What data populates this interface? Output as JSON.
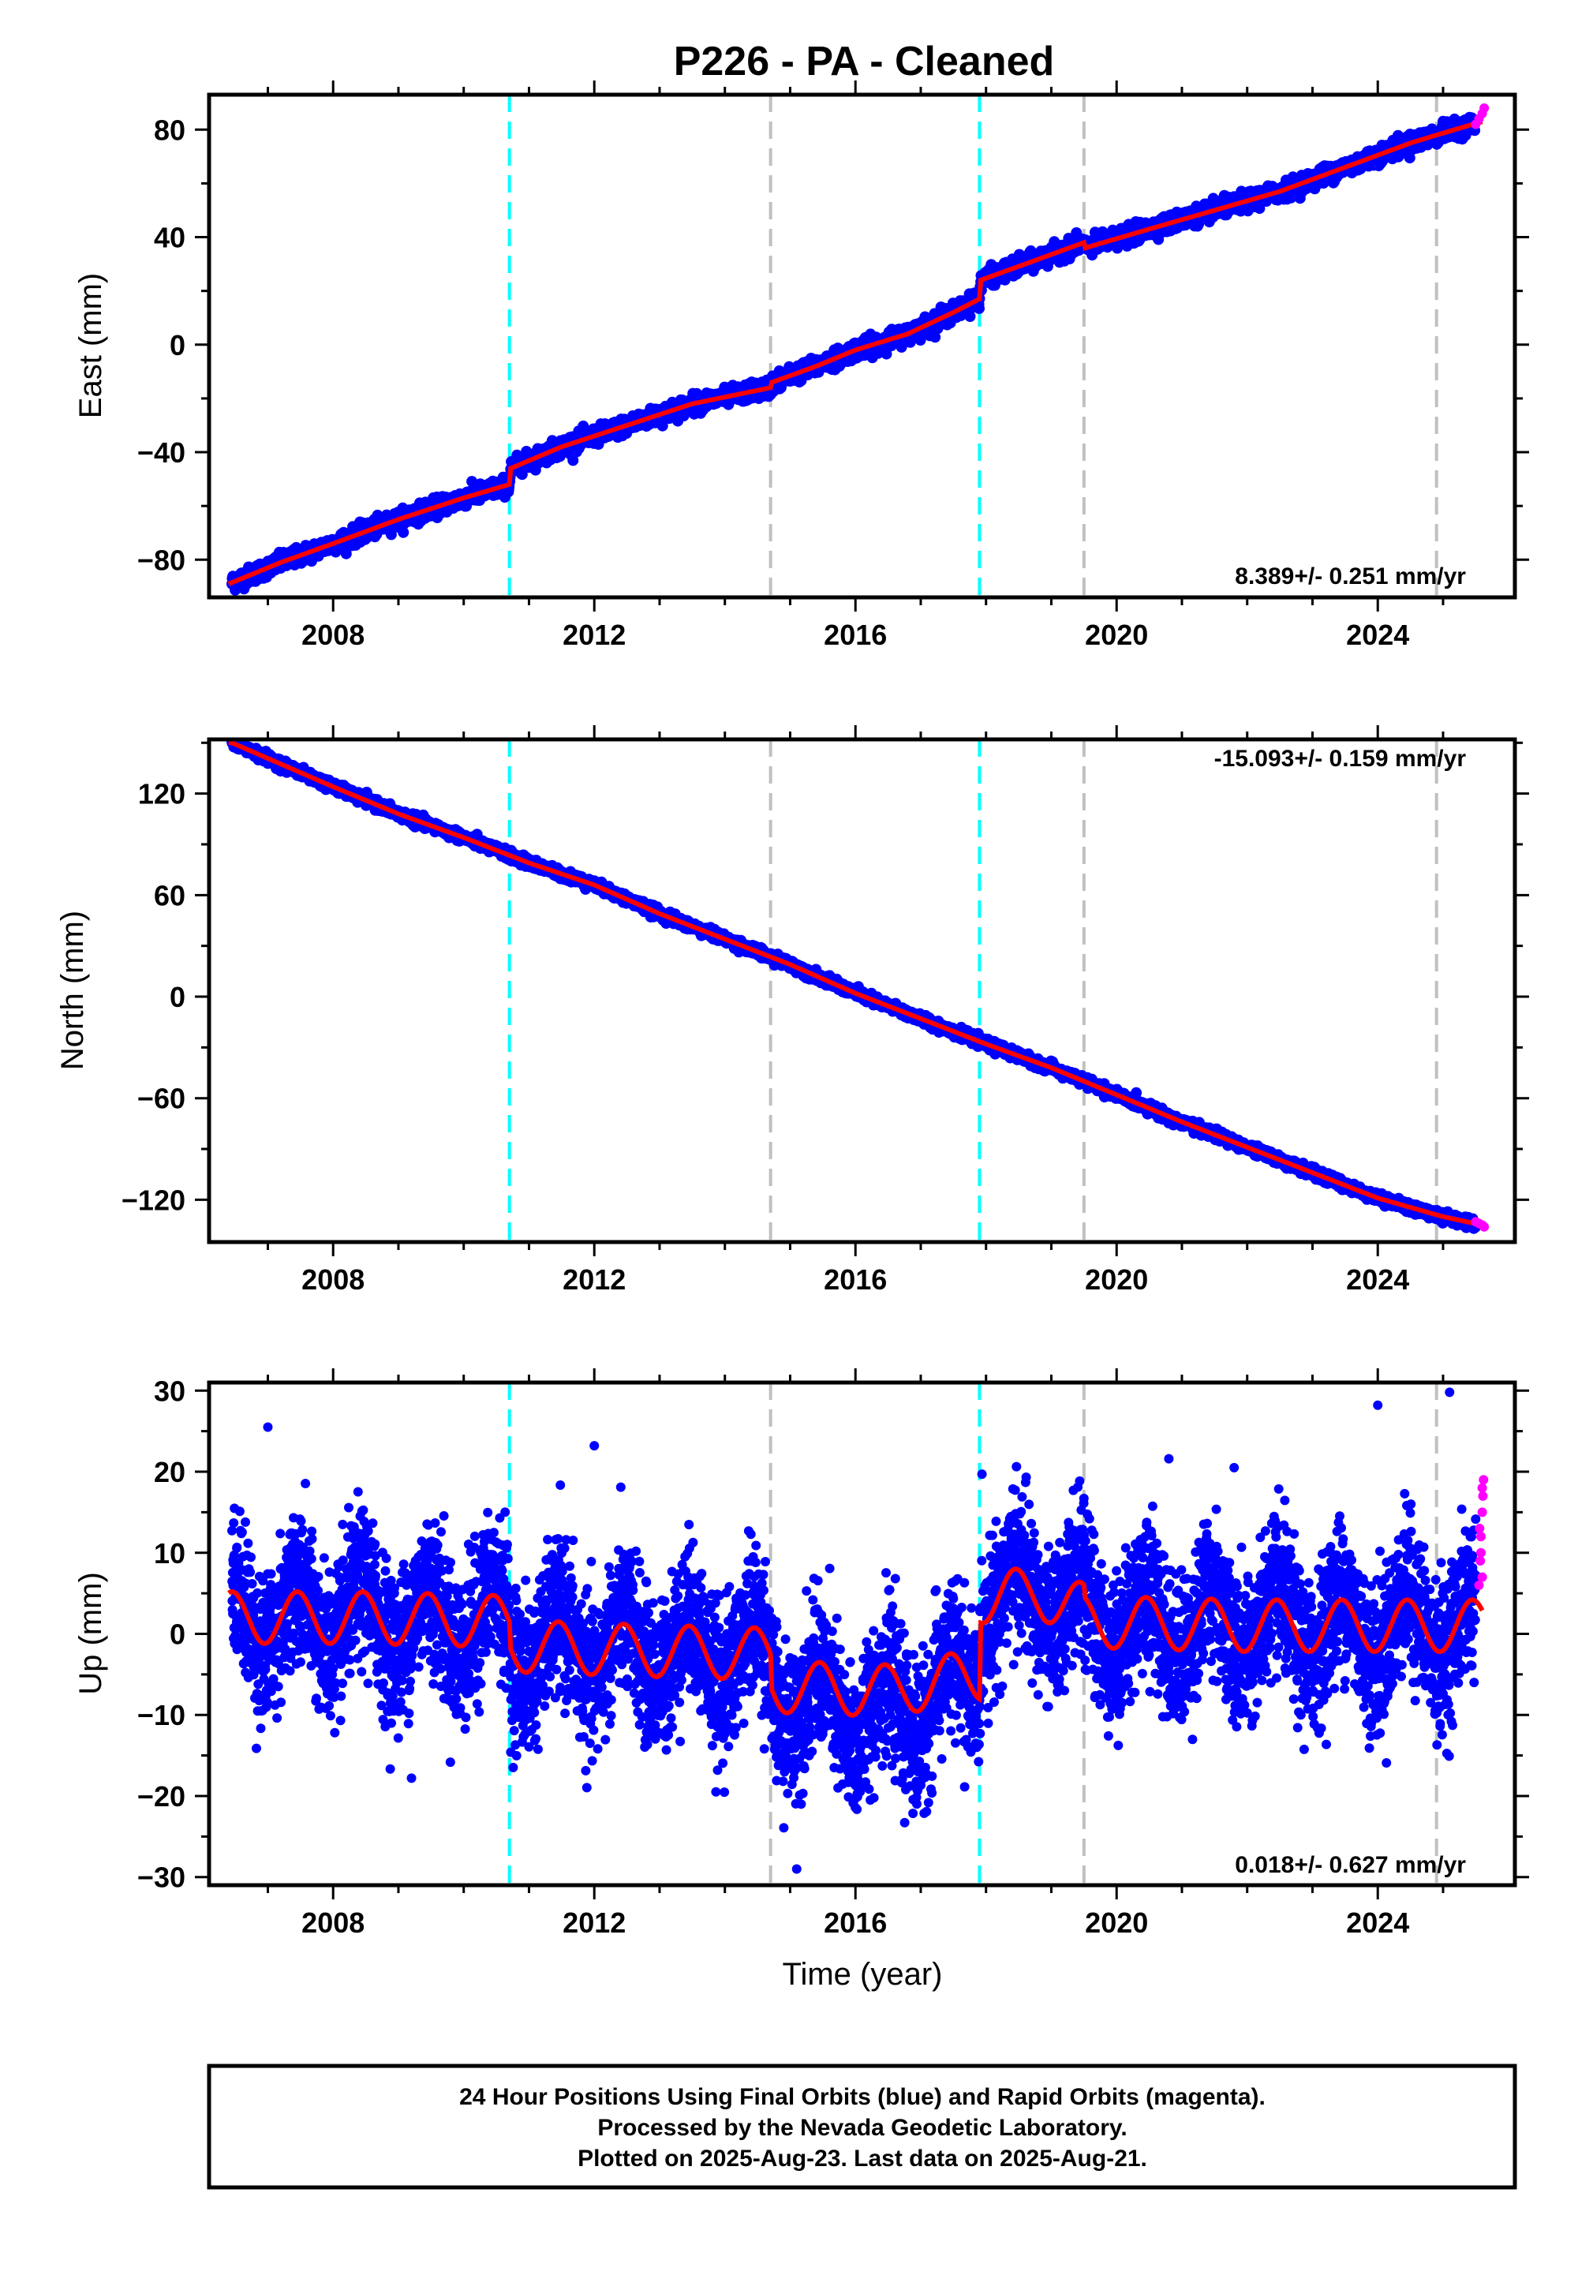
{
  "title": "P226  - PA - Cleaned",
  "xlabel": "Time (year)",
  "colors": {
    "final_orbits": "#0000ff",
    "rapid_orbits": "#ff00ff",
    "model": "#ff0000",
    "equipment_change": "#00ffff",
    "other_event": "#c0c0c0"
  },
  "chart_data": [
    {
      "type": "scatter",
      "name": "East",
      "ylabel": "East (mm)",
      "rate_label": "8.389+/- 0.251 mm/yr",
      "xlim": [
        2006.1,
        2026.1
      ],
      "ylim": [
        -94,
        93
      ],
      "xticks": [
        2008,
        2012,
        2016,
        2020,
        2024
      ],
      "yticks": [
        -80,
        -40,
        0,
        40,
        80
      ],
      "rate_mm_yr": 8.389,
      "start": [
        2006.45,
        -88
      ],
      "end": [
        2025.6,
        84
      ],
      "noise_mm": 1.6,
      "cyan_events": [
        2010.7,
        2017.9
      ],
      "gray_events": [
        2014.7,
        2019.5,
        2024.9
      ],
      "model_points": [
        [
          2006.4,
          -89
        ],
        [
          2007.2,
          -81
        ],
        [
          2008.0,
          -74
        ],
        [
          2009.0,
          -65
        ],
        [
          2010.0,
          -57
        ],
        [
          2010.7,
          -52
        ],
        [
          2010.72,
          -46
        ],
        [
          2011.5,
          -38
        ],
        [
          2012.5,
          -30
        ],
        [
          2013.5,
          -22
        ],
        [
          2014.7,
          -16
        ],
        [
          2014.72,
          -14
        ],
        [
          2015.4,
          -8
        ],
        [
          2016.0,
          -2
        ],
        [
          2016.8,
          4
        ],
        [
          2017.5,
          12
        ],
        [
          2017.9,
          17
        ],
        [
          2017.92,
          24
        ],
        [
          2018.6,
          30
        ],
        [
          2019.5,
          38
        ],
        [
          2019.52,
          36
        ],
        [
          2020.5,
          43
        ],
        [
          2021.5,
          50
        ],
        [
          2022.5,
          57
        ],
        [
          2023.5,
          66
        ],
        [
          2024.5,
          75
        ],
        [
          2024.9,
          78
        ],
        [
          2025.6,
          83
        ]
      ],
      "rapid_points": [
        [
          2025.5,
          82
        ],
        [
          2025.55,
          84
        ],
        [
          2025.6,
          86
        ],
        [
          2025.63,
          88
        ]
      ]
    },
    {
      "type": "scatter",
      "name": "North",
      "ylabel": "North (mm)",
      "rate_label": "-15.093+/- 0.159 mm/yr",
      "xlim": [
        2006.1,
        2026.1
      ],
      "ylim": [
        -145,
        152
      ],
      "xticks": [
        2008,
        2012,
        2016,
        2020,
        2024
      ],
      "yticks": [
        -120,
        -60,
        0,
        60,
        120
      ],
      "rate_mm_yr": -15.093,
      "start": [
        2006.45,
        150
      ],
      "end": [
        2025.6,
        -135
      ],
      "noise_mm": 1.4,
      "cyan_events": [
        2010.7,
        2017.9
      ],
      "gray_events": [
        2014.7,
        2019.5,
        2024.9
      ],
      "model_points": [
        [
          2006.45,
          150
        ],
        [
          2008.0,
          124
        ],
        [
          2009.0,
          108
        ],
        [
          2010.0,
          94
        ],
        [
          2011.0,
          79
        ],
        [
          2012.0,
          66
        ],
        [
          2013.0,
          49
        ],
        [
          2014.0,
          34
        ],
        [
          2015.0,
          19
        ],
        [
          2016.0,
          2
        ],
        [
          2017.0,
          -13
        ],
        [
          2018.0,
          -28
        ],
        [
          2019.0,
          -42
        ],
        [
          2020.0,
          -58
        ],
        [
          2021.0,
          -74
        ],
        [
          2022.0,
          -89
        ],
        [
          2023.0,
          -104
        ],
        [
          2024.0,
          -119
        ],
        [
          2025.0,
          -130
        ],
        [
          2025.6,
          -135
        ]
      ],
      "rapid_points": [
        [
          2025.5,
          -133
        ],
        [
          2025.55,
          -134
        ],
        [
          2025.6,
          -135
        ],
        [
          2025.63,
          -136
        ]
      ]
    },
    {
      "type": "scatter",
      "name": "Up",
      "ylabel": "Up (mm)",
      "rate_label": "0.018+/- 0.627 mm/yr",
      "xlim": [
        2006.1,
        2026.1
      ],
      "ylim": [
        -31,
        31
      ],
      "xticks": [
        2008,
        2012,
        2016,
        2020,
        2024
      ],
      "yticks": [
        -30,
        -20,
        -10,
        0,
        10,
        20,
        30
      ],
      "rate_mm_yr": 0.018,
      "noise_mm": 4.5,
      "cyan_events": [
        2010.7,
        2017.9
      ],
      "gray_events": [
        2014.7,
        2019.5,
        2024.9
      ],
      "seasonal_amplitude_mm": 3.2,
      "model_offsets": [
        [
          2006.4,
          2.0
        ],
        [
          2008.5,
          2.0
        ],
        [
          2010.7,
          1.5
        ],
        [
          2010.72,
          -1.5
        ],
        [
          2012.5,
          -2.0
        ],
        [
          2014.7,
          -2.5
        ],
        [
          2014.72,
          -6.5
        ],
        [
          2016.5,
          -7.0
        ],
        [
          2017.9,
          -5.0
        ],
        [
          2017.92,
          4.5
        ],
        [
          2018.8,
          5.0
        ],
        [
          2019.5,
          3.0
        ],
        [
          2019.52,
          1.5
        ],
        [
          2022.0,
          1.0
        ],
        [
          2025.6,
          1.0
        ]
      ],
      "rapid_points": [
        [
          2025.55,
          6
        ],
        [
          2025.57,
          9
        ],
        [
          2025.58,
          12
        ],
        [
          2025.6,
          15
        ],
        [
          2025.61,
          17
        ],
        [
          2025.62,
          19
        ],
        [
          2025.6,
          7
        ],
        [
          2025.58,
          10
        ],
        [
          2025.56,
          13
        ],
        [
          2025.6,
          18
        ]
      ],
      "outliers": [
        [
          2007.0,
          25.5
        ],
        [
          2012.0,
          23.2
        ],
        [
          2020.8,
          21.6
        ],
        [
          2021.8,
          20.5
        ],
        [
          2024.0,
          28.2
        ],
        [
          2025.1,
          29.8
        ],
        [
          2009.2,
          -17.8
        ],
        [
          2015.1,
          -29.0
        ]
      ]
    }
  ],
  "footer": {
    "line1": "24 Hour Positions Using Final Orbits (blue) and Rapid Orbits (magenta).",
    "line2": "Processed by the Nevada Geodetic Laboratory.",
    "line3": "Plotted on 2025-Aug-23. Last data on 2025-Aug-21."
  }
}
